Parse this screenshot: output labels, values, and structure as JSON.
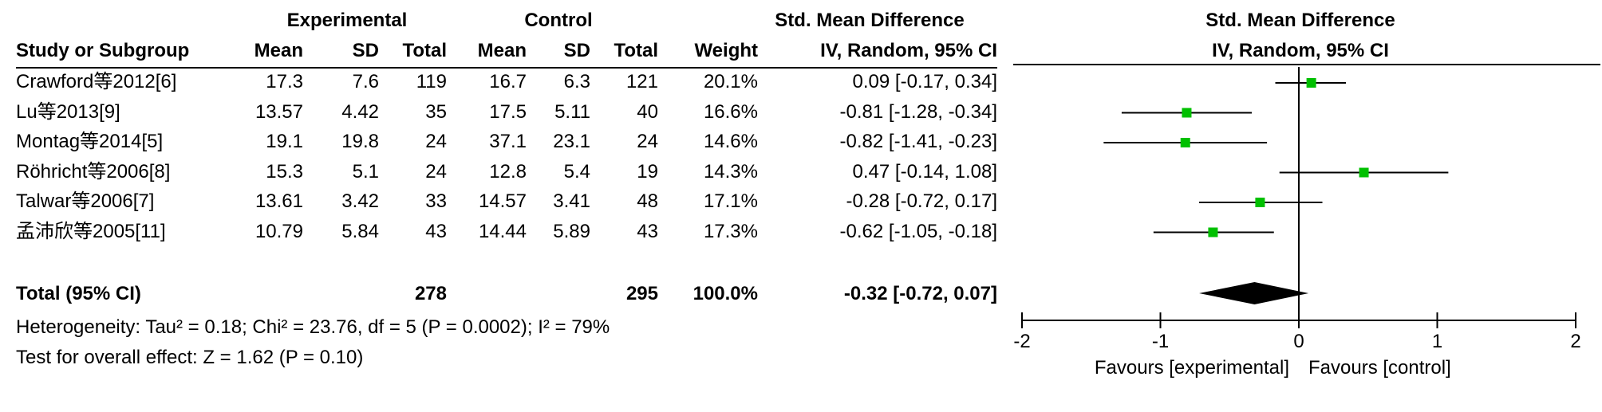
{
  "chart_data": {
    "type": "forest",
    "header": {
      "experimental_group": "Experimental",
      "control_group": "Control",
      "effect_title": "Std. Mean Difference",
      "effect_method": "IV, Random, 95% CI",
      "plot_title": "Std. Mean Difference",
      "plot_method": "IV, Random, 95% CI"
    },
    "columns": {
      "study": "Study or Subgroup",
      "exp_mean": "Mean",
      "exp_sd": "SD",
      "exp_total": "Total",
      "ctl_mean": "Mean",
      "ctl_sd": "SD",
      "ctl_total": "Total",
      "weight": "Weight"
    },
    "studies": [
      {
        "name": "Crawford等2012[6]",
        "exp_mean": "17.3",
        "exp_sd": "7.6",
        "exp_total": "119",
        "ctl_mean": "16.7",
        "ctl_sd": "6.3",
        "ctl_total": "121",
        "weight": "20.1%",
        "ci_text": "0.09 [-0.17, 0.34]",
        "est": 0.09,
        "lo": -0.17,
        "hi": 0.34
      },
      {
        "name": "Lu等2013[9]",
        "exp_mean": "13.57",
        "exp_sd": "4.42",
        "exp_total": "35",
        "ctl_mean": "17.5",
        "ctl_sd": "5.11",
        "ctl_total": "40",
        "weight": "16.6%",
        "ci_text": "-0.81 [-1.28, -0.34]",
        "est": -0.81,
        "lo": -1.28,
        "hi": -0.34
      },
      {
        "name": "Montag等2014[5]",
        "exp_mean": "19.1",
        "exp_sd": "19.8",
        "exp_total": "24",
        "ctl_mean": "37.1",
        "ctl_sd": "23.1",
        "ctl_total": "24",
        "weight": "14.6%",
        "ci_text": "-0.82 [-1.41, -0.23]",
        "est": -0.82,
        "lo": -1.41,
        "hi": -0.23
      },
      {
        "name": "Röhricht等2006[8]",
        "exp_mean": "15.3",
        "exp_sd": "5.1",
        "exp_total": "24",
        "ctl_mean": "12.8",
        "ctl_sd": "5.4",
        "ctl_total": "19",
        "weight": "14.3%",
        "ci_text": "0.47 [-0.14, 1.08]",
        "est": 0.47,
        "lo": -0.14,
        "hi": 1.08
      },
      {
        "name": "Talwar等2006[7]",
        "exp_mean": "13.61",
        "exp_sd": "3.42",
        "exp_total": "33",
        "ctl_mean": "14.57",
        "ctl_sd": "3.41",
        "ctl_total": "48",
        "weight": "17.1%",
        "ci_text": "-0.28 [-0.72, 0.17]",
        "est": -0.28,
        "lo": -0.72,
        "hi": 0.17
      },
      {
        "name": "孟沛欣等2005[11]",
        "exp_mean": "10.79",
        "exp_sd": "5.84",
        "exp_total": "43",
        "ctl_mean": "14.44",
        "ctl_sd": "5.89",
        "ctl_total": "43",
        "weight": "17.3%",
        "ci_text": "-0.62 [-1.05, -0.18]",
        "est": -0.62,
        "lo": -1.05,
        "hi": -0.18
      }
    ],
    "total": {
      "label": "Total (95% CI)",
      "exp_total": "278",
      "ctl_total": "295",
      "weight": "100.0%",
      "ci_text": "-0.32 [-0.72, 0.07]",
      "est": -0.32,
      "lo": -0.72,
      "hi": 0.07
    },
    "heterogeneity": "Heterogeneity: Tau² = 0.18; Chi² = 23.76, df = 5 (P = 0.0002); I² = 79%",
    "overall_effect": "Test for overall effect: Z = 1.62 (P = 0.10)",
    "axis": {
      "xlim": [
        -2,
        2
      ],
      "ticks": [
        -2,
        -1,
        0,
        1,
        2
      ],
      "tick_labels": [
        "-2",
        "-1",
        "0",
        "1",
        "2"
      ],
      "favours_left": "Favours [experimental]",
      "favours_right": "Favours [control]"
    },
    "colors": {
      "marker": "#00c000",
      "line": "#000000",
      "diamond": "#000000"
    }
  }
}
